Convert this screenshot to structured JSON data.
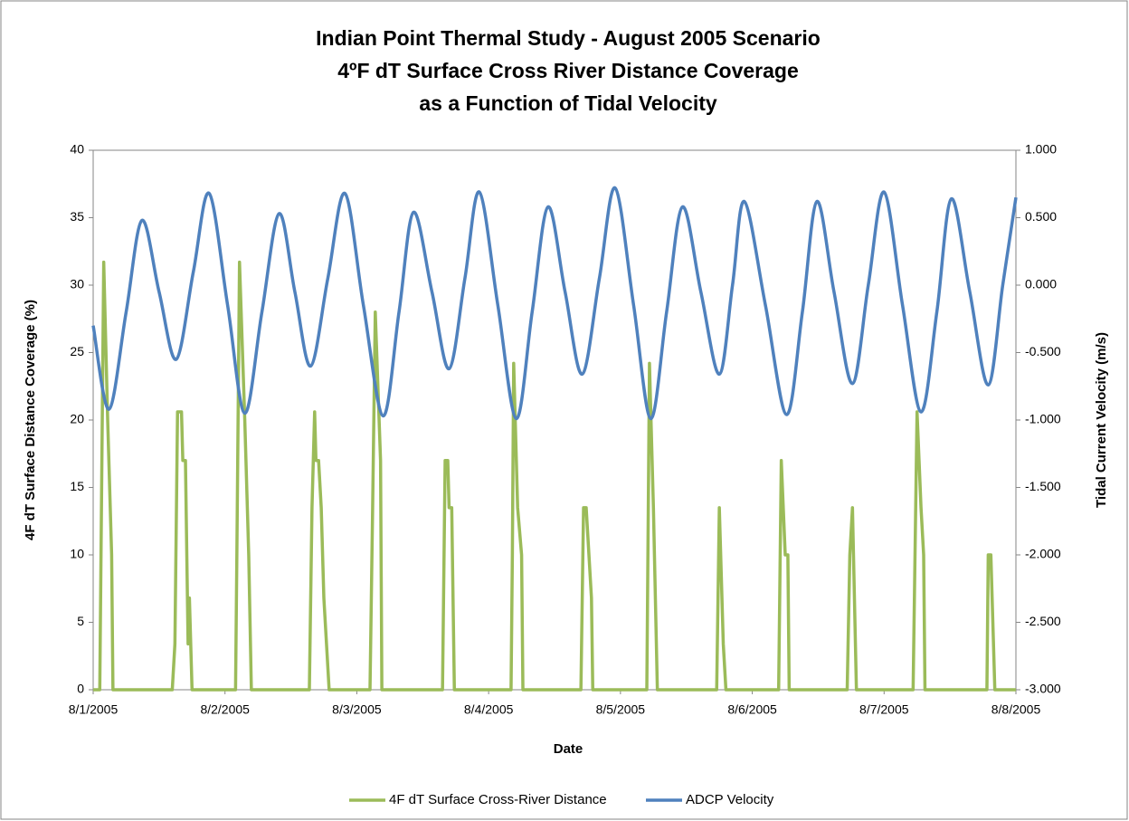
{
  "chart_data": {
    "type": "line",
    "title": [
      "Indian Point Thermal Study - August 2005 Scenario",
      "4ºF dT Surface Cross River Distance Coverage",
      "as a Function of  Tidal Velocity"
    ],
    "x_label": "Date",
    "y_label": "4F dT Surface  Distance  Coverage (%)",
    "y2_label": "Tidal Current Velocity (m/s)",
    "xlim": [
      0,
      7
    ],
    "xticks": [
      {
        "value": 0,
        "label": "8/1/2005"
      },
      {
        "value": 1,
        "label": "8/2/2005"
      },
      {
        "value": 2,
        "label": "8/3/2005"
      },
      {
        "value": 3,
        "label": "8/4/2005"
      },
      {
        "value": 4,
        "label": "8/5/2005"
      },
      {
        "value": 5,
        "label": "8/6/2005"
      },
      {
        "value": 6,
        "label": "8/7/2005"
      },
      {
        "value": 7,
        "label": "8/8/2005"
      }
    ],
    "ylim": [
      0,
      40
    ],
    "yticks": [
      0,
      5,
      10,
      15,
      20,
      25,
      30,
      35,
      40
    ],
    "y2lim": [
      -3,
      1
    ],
    "y2ticks": [
      {
        "value": -3,
        "label": "-3.000"
      },
      {
        "value": -2.5,
        "label": "-2.500"
      },
      {
        "value": -2,
        "label": "-2.000"
      },
      {
        "value": -1.5,
        "label": "-1.500"
      },
      {
        "value": -1,
        "label": "-1.000"
      },
      {
        "value": -0.5,
        "label": "-0.500"
      },
      {
        "value": 0,
        "label": "0.000"
      },
      {
        "value": 0.5,
        "label": "0.500"
      },
      {
        "value": 1,
        "label": "1.000"
      }
    ],
    "legend": "bottom",
    "series": [
      {
        "name": "4F dT Surface Cross-River Distance",
        "color": "#9bbb59",
        "axis": "y",
        "x": [
          0,
          0.05,
          0.08,
          0.11,
          0.14,
          0.15,
          0.6,
          0.62,
          0.64,
          0.67,
          0.68,
          0.7,
          0.72,
          0.73,
          0.75,
          1.08,
          1.09,
          1.11,
          1.15,
          1.18,
          1.2,
          1.64,
          1.66,
          1.68,
          1.69,
          1.71,
          1.73,
          1.75,
          1.79,
          2.1,
          2.12,
          2.14,
          2.18,
          2.19,
          2.65,
          2.67,
          2.69,
          2.7,
          2.72,
          2.74,
          3.17,
          3.18,
          3.19,
          3.22,
          3.25,
          3.26,
          3.7,
          3.72,
          3.74,
          3.78,
          3.79,
          4.2,
          4.22,
          4.25,
          4.28,
          4.73,
          4.75,
          4.78,
          4.8,
          5.2,
          5.22,
          5.25,
          5.27,
          5.28,
          5.72,
          5.74,
          5.76,
          5.79,
          6.22,
          6.25,
          6.28,
          6.3,
          6.31,
          6.78,
          6.79,
          6.81,
          6.84,
          7
        ],
        "values": [
          0,
          0,
          31.7,
          20,
          10,
          0,
          0,
          3.4,
          20.6,
          20.6,
          17,
          17,
          3.4,
          6.8,
          0,
          0,
          10,
          31.7,
          20,
          10,
          0,
          0,
          13.5,
          20.6,
          17,
          17,
          13.5,
          6.8,
          0,
          0,
          13.5,
          28,
          17,
          0,
          0,
          17,
          17,
          13.5,
          13.5,
          0,
          0,
          10,
          24.2,
          13.5,
          10,
          0,
          0,
          13.5,
          13.5,
          6.8,
          0,
          0,
          24.2,
          13.5,
          0,
          0,
          13.5,
          3.4,
          0,
          0,
          17,
          10,
          10,
          0,
          0,
          10,
          13.5,
          0,
          0,
          20.6,
          13.5,
          10,
          0,
          0,
          10,
          10,
          0,
          0
        ]
      },
      {
        "name": "ADCP Velocity",
        "color": "#4f81bd",
        "axis": "y2",
        "x": [
          0,
          0.12,
          0.25,
          0.37,
          0.5,
          0.63,
          0.76,
          0.88,
          1.02,
          1.15,
          1.28,
          1.41,
          1.53,
          1.65,
          1.78,
          1.91,
          2.05,
          2.2,
          2.32,
          2.43,
          2.57,
          2.7,
          2.82,
          2.93,
          3.07,
          3.21,
          3.33,
          3.45,
          3.58,
          3.71,
          3.84,
          3.96,
          4.1,
          4.23,
          4.35,
          4.47,
          4.61,
          4.75,
          4.85,
          4.94,
          5.1,
          5.26,
          5.38,
          5.49,
          5.62,
          5.76,
          5.88,
          6,
          6.14,
          6.28,
          6.4,
          6.51,
          6.65,
          6.79,
          6.9,
          7
        ],
        "values": [
          -0.3,
          -0.92,
          -0.2,
          0.48,
          -0.05,
          -0.55,
          0.1,
          0.68,
          -0.15,
          -0.95,
          -0.2,
          0.53,
          -0.05,
          -0.6,
          0.05,
          0.68,
          -0.15,
          -0.97,
          -0.2,
          0.54,
          -0.05,
          -0.62,
          0.05,
          0.69,
          -0.15,
          -0.99,
          -0.2,
          0.58,
          -0.05,
          -0.66,
          0.05,
          0.72,
          -0.15,
          -0.99,
          -0.2,
          0.58,
          -0.05,
          -0.66,
          0,
          0.62,
          -0.15,
          -0.96,
          -0.2,
          0.62,
          -0.05,
          -0.73,
          0,
          0.69,
          -0.15,
          -0.94,
          -0.2,
          0.64,
          -0.05,
          -0.74,
          0,
          0.65
        ]
      }
    ]
  }
}
